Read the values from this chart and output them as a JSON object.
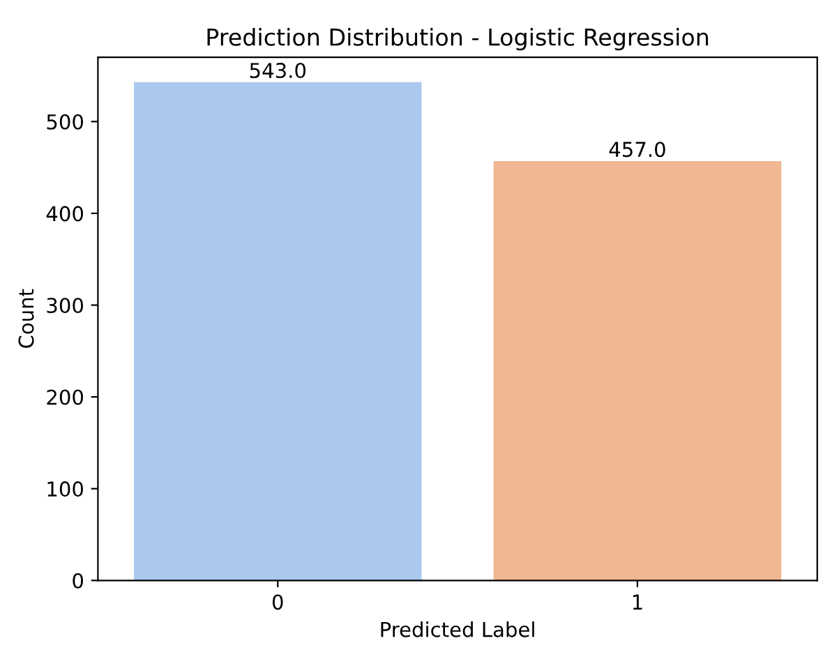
{
  "chart_data": {
    "type": "bar",
    "title": "Prediction Distribution - Logistic Regression",
    "xlabel": "Predicted Label",
    "ylabel": "Count",
    "categories": [
      "0",
      "1"
    ],
    "values": [
      543,
      457
    ],
    "colors": [
      "#abc9ee",
      "#f0b793"
    ],
    "value_labels": [
      "543.0",
      "457.0"
    ],
    "ylim": [
      0,
      570.15
    ],
    "yticks": [
      0,
      100,
      200,
      300,
      400,
      500
    ],
    "grid": false,
    "legend": false
  }
}
